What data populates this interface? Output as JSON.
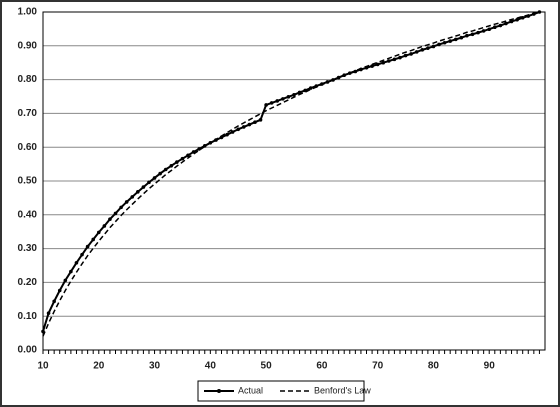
{
  "chart_data": {
    "type": "line",
    "x": [
      10,
      11,
      12,
      13,
      14,
      15,
      16,
      17,
      18,
      19,
      20,
      21,
      22,
      23,
      24,
      25,
      26,
      27,
      28,
      29,
      30,
      31,
      32,
      33,
      34,
      35,
      36,
      37,
      38,
      39,
      40,
      41,
      42,
      43,
      44,
      45,
      46,
      47,
      48,
      49,
      50,
      51,
      52,
      53,
      54,
      55,
      56,
      57,
      58,
      59,
      60,
      61,
      62,
      63,
      64,
      65,
      66,
      67,
      68,
      69,
      70,
      71,
      72,
      73,
      74,
      75,
      76,
      77,
      78,
      79,
      80,
      81,
      82,
      83,
      84,
      85,
      86,
      87,
      88,
      89,
      90,
      91,
      92,
      93,
      94,
      95,
      96,
      97,
      98,
      99
    ],
    "series": [
      {
        "name": "Actual",
        "color": "#000000",
        "markers": true,
        "dashed": false,
        "values": [
          0.055,
          0.109,
          0.144,
          0.176,
          0.206,
          0.232,
          0.258,
          0.282,
          0.306,
          0.327,
          0.348,
          0.367,
          0.387,
          0.404,
          0.422,
          0.438,
          0.453,
          0.468,
          0.482,
          0.496,
          0.509,
          0.522,
          0.534,
          0.545,
          0.556,
          0.566,
          0.576,
          0.586,
          0.595,
          0.604,
          0.613,
          0.621,
          0.629,
          0.637,
          0.645,
          0.653,
          0.66,
          0.667,
          0.674,
          0.681,
          0.725,
          0.731,
          0.737,
          0.743,
          0.749,
          0.755,
          0.762,
          0.768,
          0.775,
          0.781,
          0.787,
          0.793,
          0.799,
          0.806,
          0.813,
          0.819,
          0.824,
          0.83,
          0.835,
          0.84,
          0.845,
          0.85,
          0.855,
          0.86,
          0.865,
          0.871,
          0.876,
          0.882,
          0.888,
          0.893,
          0.898,
          0.904,
          0.909,
          0.914,
          0.919,
          0.924,
          0.93,
          0.934,
          0.939,
          0.944,
          0.949,
          0.955,
          0.96,
          0.966,
          0.972,
          0.977,
          0.983,
          0.988,
          0.994,
          1.0
        ]
      },
      {
        "name": "Benford's Law",
        "color": "#000000",
        "markers": false,
        "dashed": true,
        "values": [
          0.041,
          0.079,
          0.114,
          0.146,
          0.176,
          0.204,
          0.23,
          0.255,
          0.279,
          0.301,
          0.322,
          0.342,
          0.362,
          0.38,
          0.398,
          0.415,
          0.431,
          0.447,
          0.462,
          0.477,
          0.491,
          0.505,
          0.519,
          0.531,
          0.544,
          0.556,
          0.568,
          0.58,
          0.591,
          0.602,
          0.613,
          0.623,
          0.633,
          0.643,
          0.653,
          0.663,
          0.672,
          0.681,
          0.69,
          0.699,
          0.708,
          0.716,
          0.724,
          0.732,
          0.74,
          0.748,
          0.756,
          0.763,
          0.771,
          0.778,
          0.785,
          0.792,
          0.799,
          0.806,
          0.813,
          0.82,
          0.826,
          0.833,
          0.839,
          0.845,
          0.851,
          0.857,
          0.863,
          0.869,
          0.875,
          0.881,
          0.886,
          0.892,
          0.898,
          0.903,
          0.908,
          0.914,
          0.919,
          0.924,
          0.929,
          0.934,
          0.94,
          0.944,
          0.949,
          0.954,
          0.959,
          0.964,
          0.968,
          0.973,
          0.978,
          0.982,
          0.987,
          0.991,
          0.996,
          1.0
        ]
      }
    ],
    "xlim": [
      10,
      100
    ],
    "xticks": [
      10,
      20,
      30,
      40,
      50,
      60,
      70,
      80,
      90
    ],
    "ylim": [
      0,
      1
    ],
    "yticks": [
      {
        "value": 0,
        "label": "0.00"
      },
      {
        "value": 0.1,
        "label": "0.10"
      },
      {
        "value": 0.2,
        "label": "0.20"
      },
      {
        "value": 0.3,
        "label": "0.30"
      },
      {
        "value": 0.4,
        "label": "0.40"
      },
      {
        "value": 0.5,
        "label": "0.50"
      },
      {
        "value": 0.6,
        "label": "0.60"
      },
      {
        "value": 0.7,
        "label": "0.70"
      },
      {
        "value": 0.8,
        "label": "0.80"
      },
      {
        "value": 0.9,
        "label": "0.90"
      },
      {
        "value": 1,
        "label": "1.00"
      }
    ],
    "grid": true,
    "legend": "bottom"
  }
}
